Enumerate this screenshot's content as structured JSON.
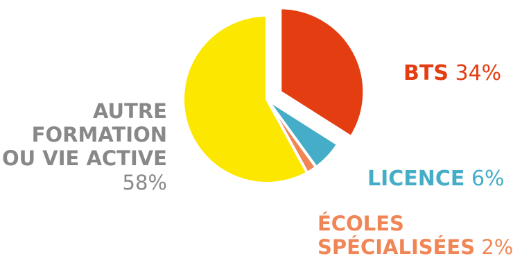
{
  "chart_data": {
    "type": "pie",
    "slices": [
      {
        "label_lines": [
          "BTS"
        ],
        "value": 34,
        "value_text": "34%",
        "color": "#e43d12"
      },
      {
        "label_lines": [
          "LICENCE"
        ],
        "value": 6,
        "value_text": "6%",
        "color": "#45adc7"
      },
      {
        "label_lines": [
          "ÉCOLES",
          "SPÉCIALISÉES"
        ],
        "value": 2,
        "value_text": "2%",
        "color": "#f08655"
      },
      {
        "label_lines": [
          "AUTRE",
          "FORMATION",
          "OU VIE ACTIVE"
        ],
        "value": 58,
        "value_text": "58%",
        "color": "#fce700"
      }
    ],
    "exploded_slice": "BTS",
    "label_color_other": "#888888"
  }
}
